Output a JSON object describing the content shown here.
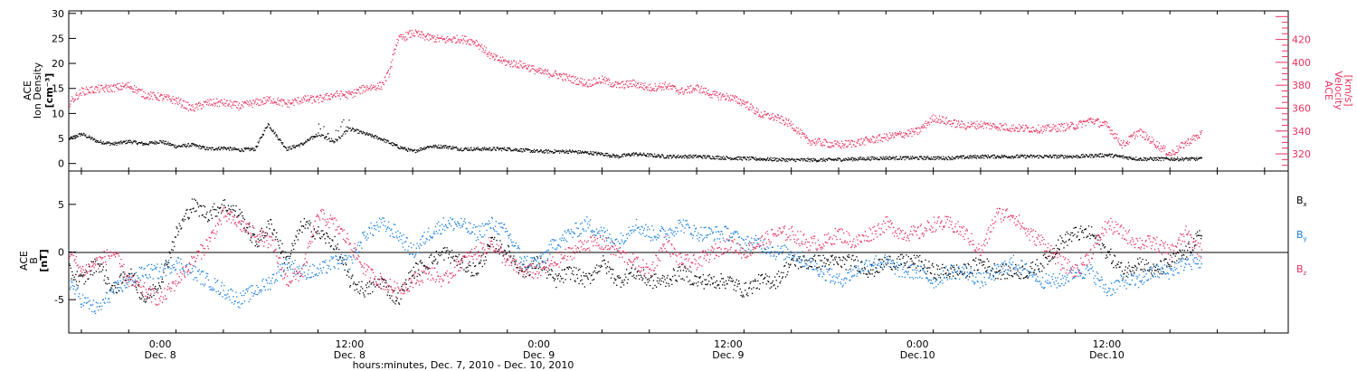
{
  "colors": {
    "black": "#000000",
    "pink": "#e8315f",
    "blue": "#1a7fe0"
  },
  "xaxis": {
    "label": "hours:minutes, Dec. 7, 2010 - Dec. 10, 2010",
    "range_hours": [
      18.2,
      95.5
    ],
    "ticks": [
      {
        "hours": 24,
        "time": "0:00",
        "date": "Dec. 8"
      },
      {
        "hours": 36,
        "time": "12:00",
        "date": "Dec. 8"
      },
      {
        "hours": 48,
        "time": "0:00",
        "date": "Dec. 9"
      },
      {
        "hours": 60,
        "time": "12:00",
        "date": "Dec. 9"
      },
      {
        "hours": 72,
        "time": "0:00",
        "date": "Dec.10"
      },
      {
        "hours": 84,
        "time": "12:00",
        "date": "Dec.10"
      }
    ]
  },
  "chart_data": [
    {
      "type": "scatter",
      "title": "",
      "ylabel_left": [
        "ACE",
        "Ion Density",
        "[cm⁻³]"
      ],
      "ylabel_right": [
        "ACE",
        "Velocity",
        "[km/s]"
      ],
      "ylim_left": [
        -1.5,
        30.5
      ],
      "ylim_right": [
        305,
        445
      ],
      "yticks_left": [
        0,
        5,
        10,
        15,
        20,
        25,
        30
      ],
      "yticks_right": [
        320,
        340,
        360,
        380,
        400,
        420
      ],
      "series": [
        {
          "name": "Ion Density",
          "axis": "left",
          "color": "#000000",
          "x": [
            18.2,
            19.0,
            20.0,
            21.0,
            22.0,
            23.0,
            24.0,
            25.0,
            26.0,
            27.0,
            28.0,
            29.0,
            30.0,
            30.8,
            31.5,
            32.0,
            33.0,
            34.0,
            35.0,
            36.0,
            37.0,
            38.0,
            39.0,
            40.0,
            41.0,
            42.0,
            43.0,
            44.0,
            46.0,
            48.0,
            50.0,
            52.0,
            53.0,
            54.0,
            56.0,
            58.0,
            60.0,
            62.0,
            64.0,
            66.0,
            68.0,
            70.0,
            72.0,
            74.0,
            76.0,
            78.0,
            80.0,
            82.0,
            84.0,
            86.0,
            88.0,
            90.0
          ],
          "values": [
            5,
            6,
            4.5,
            4,
            4.5,
            4,
            4.5,
            3.5,
            3.8,
            3,
            3.2,
            2.8,
            3,
            8,
            5,
            3,
            4,
            6,
            4.5,
            7,
            6,
            5,
            3.5,
            2.5,
            3.5,
            3.5,
            3,
            3,
            3,
            2.5,
            2.5,
            2,
            1.5,
            2,
            1.5,
            1.5,
            1.2,
            1,
            0.8,
            0.8,
            1,
            1.2,
            1.2,
            1.2,
            1.5,
            1.5,
            1.5,
            1.5,
            1.8,
            1,
            1,
            1
          ]
        },
        {
          "name": "Velocity",
          "axis": "right",
          "color": "#e8315f",
          "x": [
            18.2,
            19.0,
            20.0,
            21.0,
            22.0,
            23.0,
            24.0,
            25.0,
            26.0,
            27.0,
            28.0,
            29.0,
            30.0,
            31.0,
            32.0,
            33.0,
            34.0,
            35.0,
            36.0,
            37.0,
            38.0,
            38.5,
            39.0,
            40.0,
            41.0,
            42.0,
            43.0,
            44.0,
            45.0,
            46.0,
            47.0,
            48.0,
            49.0,
            50.0,
            51.0,
            52.0,
            53.0,
            54.0,
            55.0,
            56.0,
            57.0,
            58.0,
            59.0,
            60.0,
            61.0,
            62.0,
            63.0,
            64.0,
            65.0,
            66.0,
            67.0,
            68.0,
            70.0,
            72.0,
            73.0,
            74.0,
            75.0,
            76.0,
            78.0,
            80.0,
            82.0,
            83.0,
            84.0,
            85.0,
            86.0,
            87.0,
            88.0,
            89.0,
            90.0
          ],
          "values": [
            365,
            375,
            377,
            378,
            380,
            372,
            370,
            367,
            360,
            365,
            365,
            362,
            365,
            368,
            364,
            368,
            368,
            372,
            372,
            378,
            380,
            392,
            420,
            426,
            422,
            420,
            421,
            418,
            405,
            400,
            398,
            392,
            390,
            386,
            382,
            385,
            380,
            382,
            378,
            380,
            375,
            378,
            372,
            370,
            365,
            355,
            352,
            346,
            332,
            330,
            328,
            330,
            335,
            340,
            352,
            348,
            345,
            346,
            343,
            342,
            345,
            350,
            345,
            328,
            340,
            330,
            320,
            330,
            338
          ]
        }
      ]
    },
    {
      "type": "scatter",
      "title": "",
      "ylabel_left": [
        "ACE",
        "B",
        "[nT]"
      ],
      "ylim": [
        -8.5,
        8.5
      ],
      "yticks": [
        -5,
        0,
        5
      ],
      "zero_line": true,
      "series": [
        {
          "name": "Bx",
          "color": "#000000",
          "x": [
            18.2,
            19.0,
            20.0,
            21.0,
            22.0,
            23.0,
            24.0,
            25.0,
            26.0,
            27.0,
            28.0,
            29.0,
            30.0,
            31.0,
            32.0,
            33.0,
            34.0,
            35.0,
            36.0,
            37.0,
            38.0,
            39.0,
            40.0,
            41.0,
            42.0,
            43.0,
            44.0,
            45.0,
            46.0,
            47.0,
            48.0,
            49.0,
            50.0,
            51.0,
            52.0,
            53.0,
            54.0,
            55.0,
            56.0,
            57.0,
            58.0,
            59.0,
            60.0,
            61.0,
            62.0,
            63.0,
            64.0,
            65.0,
            66.0,
            67.0,
            68.0,
            69.0,
            70.0,
            71.0,
            72.0,
            73.0,
            74.0,
            75.0,
            76.0,
            77.0,
            78.0,
            79.0,
            80.0,
            81.0,
            82.0,
            83.0,
            84.0,
            85.0,
            86.0,
            87.0,
            88.0,
            89.0,
            90.0
          ],
          "values": [
            -2,
            -3,
            -1,
            -4,
            -2,
            -5,
            -3,
            2,
            5,
            4,
            5,
            4,
            1,
            3,
            -1,
            3,
            2,
            1,
            -3,
            -4,
            -3,
            -5,
            -2,
            -1,
            0,
            -1,
            -2,
            1,
            0,
            -2,
            -1,
            -3,
            -2,
            -3,
            -1,
            -3,
            -2,
            -3,
            -3,
            -2,
            -3,
            -3,
            -3,
            -4,
            -3,
            -3,
            -1,
            -1,
            -1,
            -1,
            -1,
            -2,
            -1,
            -1,
            -1,
            -2,
            -2,
            -2,
            -1,
            -2,
            -2,
            -2,
            -1,
            1,
            2,
            2,
            0,
            -2,
            -1,
            -2,
            -1,
            0,
            2
          ]
        },
        {
          "name": "By",
          "color": "#1a7fe0",
          "x": [
            18.2,
            19.0,
            20.0,
            21.0,
            22.0,
            23.0,
            24.0,
            25.0,
            26.0,
            27.0,
            28.0,
            29.0,
            30.0,
            31.0,
            32.0,
            33.0,
            34.0,
            35.0,
            36.0,
            37.0,
            38.0,
            39.0,
            40.0,
            41.0,
            42.0,
            43.0,
            44.0,
            45.0,
            46.0,
            47.0,
            48.0,
            49.0,
            50.0,
            51.0,
            52.0,
            53.0,
            54.0,
            55.0,
            56.0,
            57.0,
            58.0,
            59.0,
            60.0,
            61.0,
            62.0,
            63.0,
            64.0,
            65.0,
            66.0,
            67.0,
            68.0,
            69.0,
            70.0,
            71.0,
            72.0,
            73.0,
            74.0,
            75.0,
            76.0,
            77.0,
            78.0,
            79.0,
            80.0,
            81.0,
            82.0,
            83.0,
            84.0,
            85.0,
            86.0,
            87.0,
            88.0,
            89.0,
            90.0
          ],
          "values": [
            -3,
            -5,
            -6,
            -4,
            -3,
            -2,
            -2,
            -1,
            -2,
            -3,
            -4,
            -5,
            -4,
            -3,
            -1,
            -2,
            -2,
            -1,
            -1,
            2,
            3,
            2,
            0,
            2,
            3,
            3,
            2,
            3,
            2,
            -1,
            -1,
            1,
            2,
            3,
            2,
            1,
            3,
            2,
            2,
            3,
            2,
            2,
            2,
            1,
            1,
            0,
            0,
            -1,
            -2,
            -3,
            -2,
            -1,
            -1,
            -2,
            -2,
            -3,
            -2,
            -2,
            -3,
            -2,
            -1,
            -2,
            -3,
            -3,
            -2,
            -2,
            -4,
            -3,
            -3,
            -2,
            -2,
            -1,
            -1
          ]
        },
        {
          "name": "Bz",
          "color": "#e8315f",
          "x": [
            18.2,
            19.0,
            20.0,
            21.0,
            22.0,
            23.0,
            24.0,
            25.0,
            26.0,
            27.0,
            28.0,
            29.0,
            30.0,
            31.0,
            32.0,
            33.0,
            34.0,
            35.0,
            36.0,
            37.0,
            38.0,
            39.0,
            40.0,
            41.0,
            42.0,
            43.0,
            44.0,
            45.0,
            46.0,
            47.0,
            48.0,
            49.0,
            50.0,
            51.0,
            52.0,
            53.0,
            54.0,
            55.0,
            56.0,
            57.0,
            58.0,
            59.0,
            60.0,
            61.0,
            62.0,
            63.0,
            64.0,
            65.0,
            66.0,
            67.0,
            68.0,
            69.0,
            70.0,
            71.0,
            72.0,
            73.0,
            74.0,
            75.0,
            76.0,
            77.0,
            78.0,
            79.0,
            80.0,
            81.0,
            82.0,
            83.0,
            84.0,
            85.0,
            86.0,
            87.0,
            88.0,
            89.0,
            90.0
          ],
          "values": [
            0,
            -2,
            -1,
            0,
            -3,
            -4,
            -5,
            -3,
            -1,
            1,
            4,
            3,
            2,
            1,
            -3,
            -2,
            4,
            3,
            1,
            -2,
            -3,
            -4,
            -3,
            -2,
            -3,
            -1,
            0,
            1,
            -1,
            -2,
            -2,
            -1,
            0,
            1,
            1,
            0,
            -1,
            -2,
            1,
            -1,
            -1,
            0,
            1,
            0,
            1,
            2,
            2,
            1,
            1,
            2,
            1,
            2,
            3,
            2,
            2,
            3,
            3,
            2,
            0,
            4,
            4,
            2,
            1,
            -1,
            -2,
            0,
            3,
            2,
            1,
            1,
            0,
            2,
            0
          ]
        }
      ]
    }
  ],
  "panel2_labels": {
    "bx": {
      "base": "B",
      "sub": "x"
    },
    "by": {
      "base": "B",
      "sub": "y"
    },
    "bz": {
      "base": "B",
      "sub": "z"
    }
  }
}
